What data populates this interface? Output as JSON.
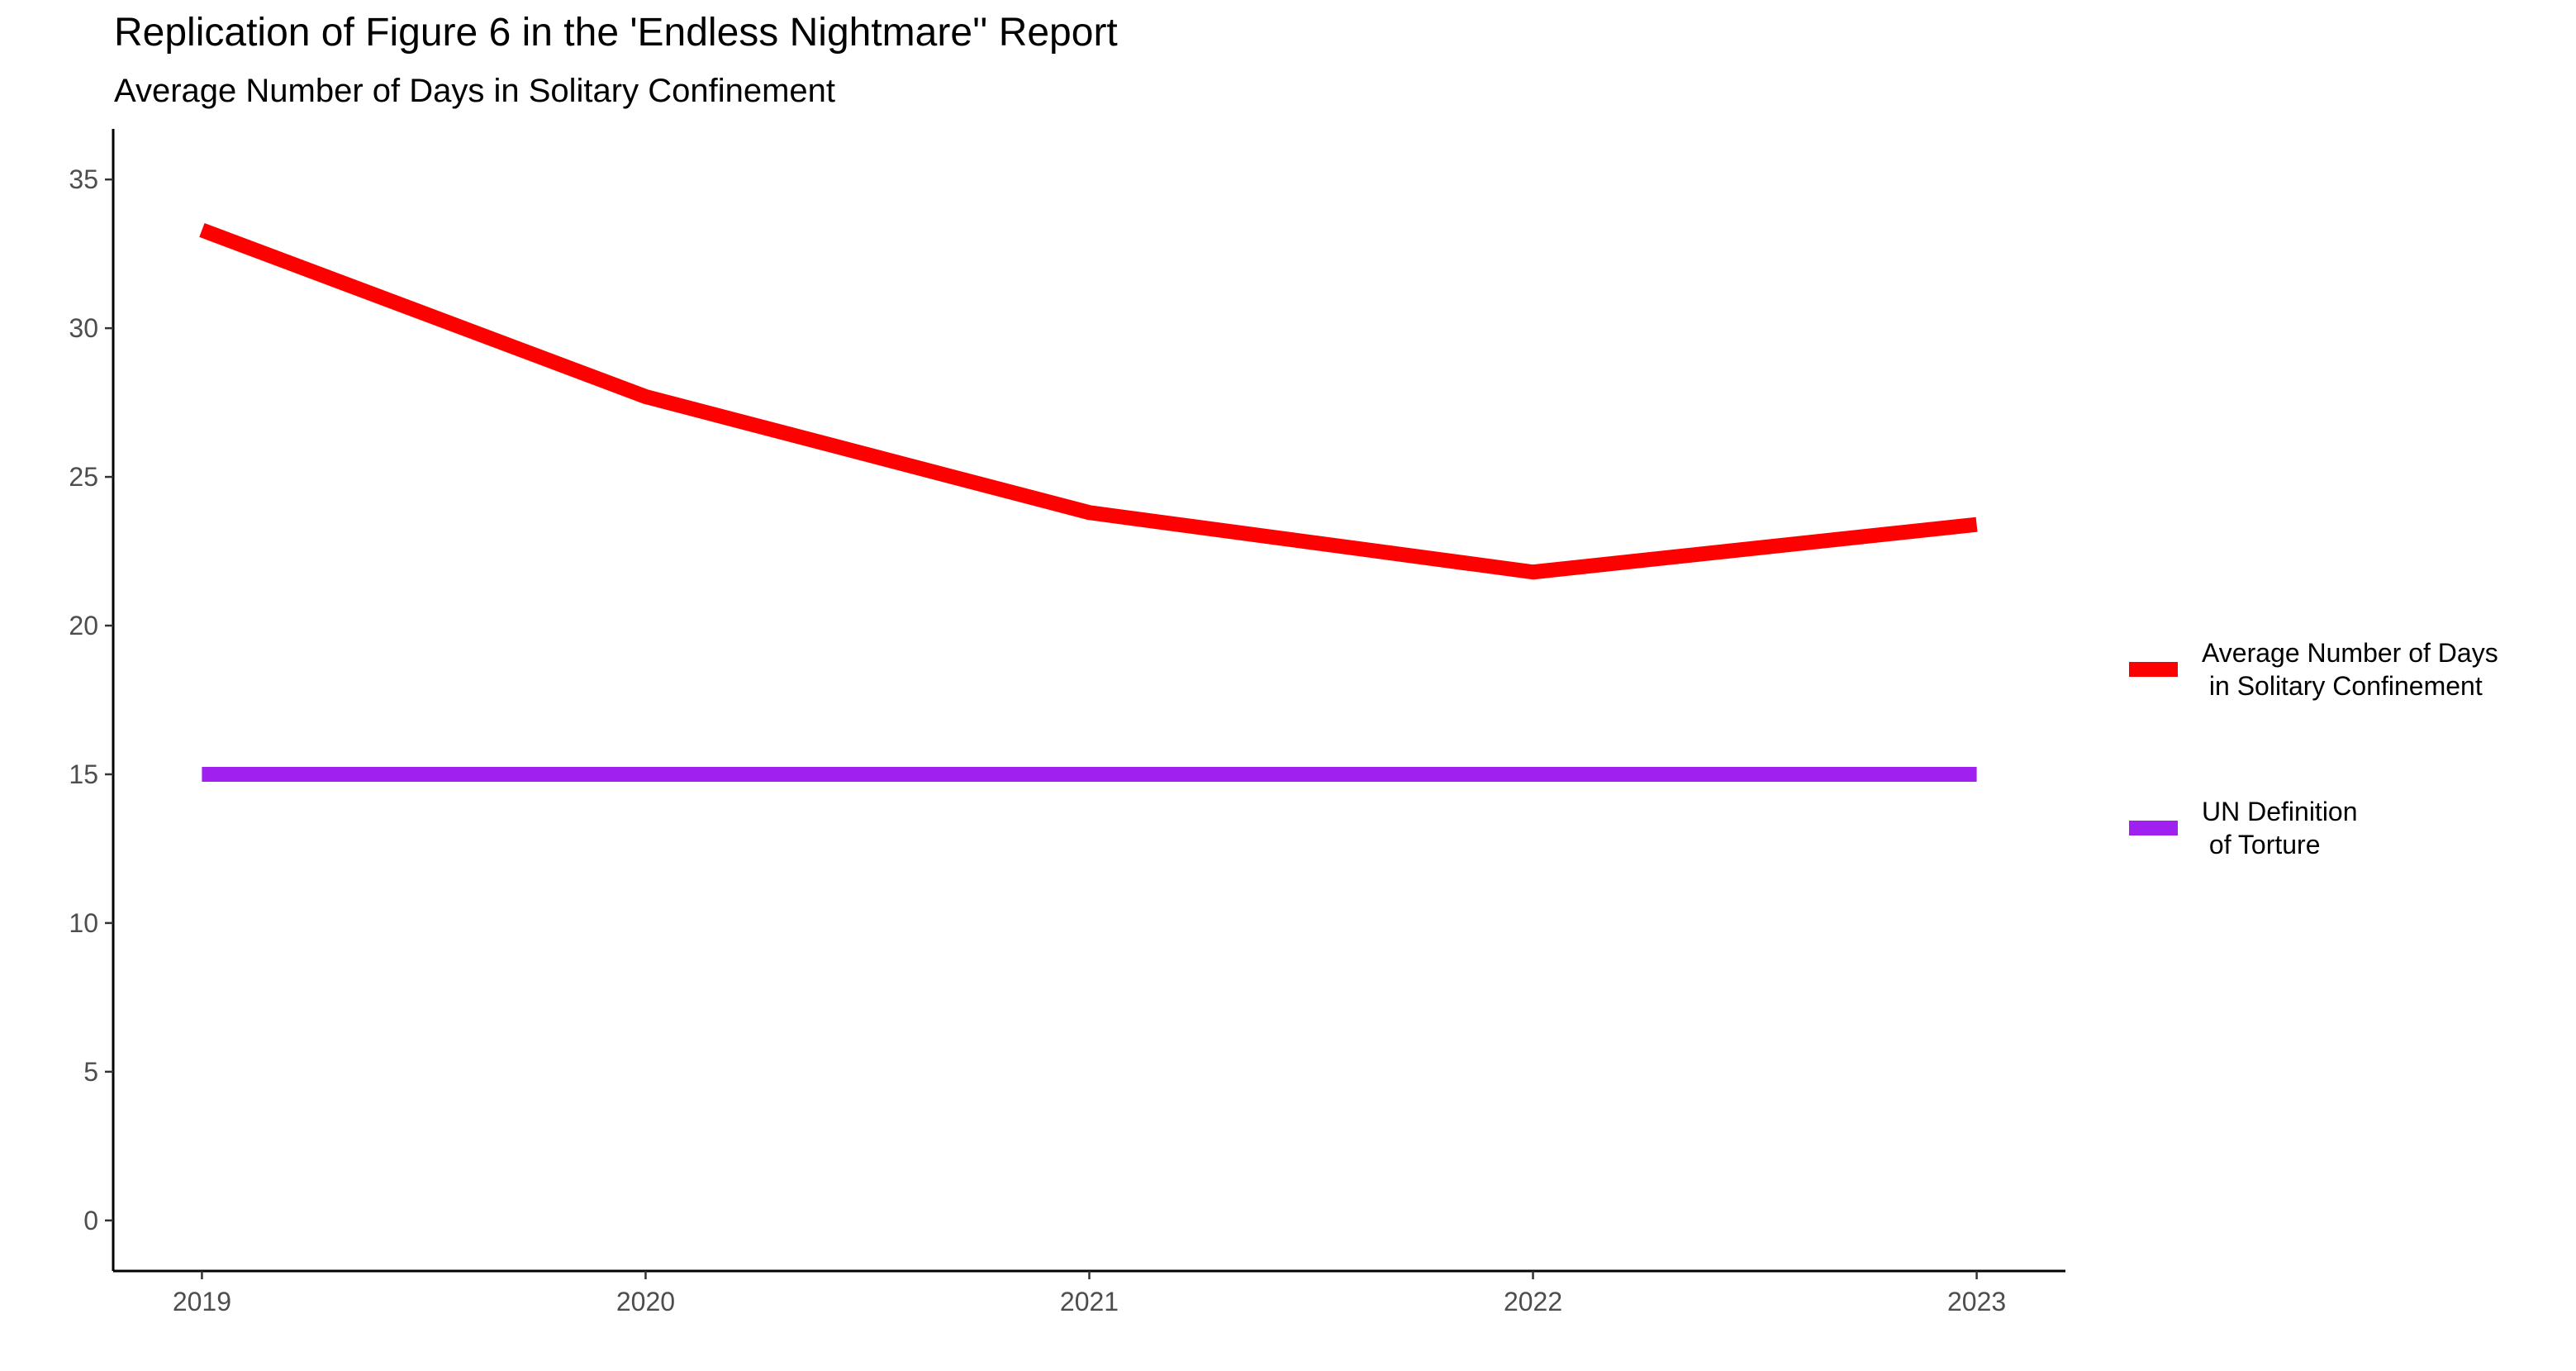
{
  "chart_data": {
    "type": "line",
    "title": "Replication of Figure 6 in the 'Endless Nightmare'' Report",
    "subtitle": "Average Number of Days in Solitary Confinement",
    "x": [
      2019,
      2020,
      2021,
      2022,
      2023
    ],
    "x_tick_labels": [
      "2019",
      "2020",
      "2021",
      "2022",
      "2023"
    ],
    "y_ticks": [
      0,
      5,
      10,
      15,
      20,
      25,
      30,
      35
    ],
    "y_tick_labels": [
      "0",
      "5",
      "10",
      "15",
      "20",
      "25",
      "30",
      "35"
    ],
    "xlim": [
      2018.8,
      2023.2
    ],
    "ylim": [
      -1.7,
      36.7
    ],
    "grid": false,
    "legend_position": "right",
    "series": [
      {
        "name_lines": [
          "Average Number of Days",
          " in Solitary Confinement"
        ],
        "values": [
          33.3,
          27.7,
          23.8,
          21.8,
          23.4
        ],
        "color": "#ff0000"
      },
      {
        "name_lines": [
          "UN Definition",
          " of Torture"
        ],
        "values": [
          15,
          15,
          15,
          15,
          15
        ],
        "color": "#a020f0"
      }
    ]
  }
}
